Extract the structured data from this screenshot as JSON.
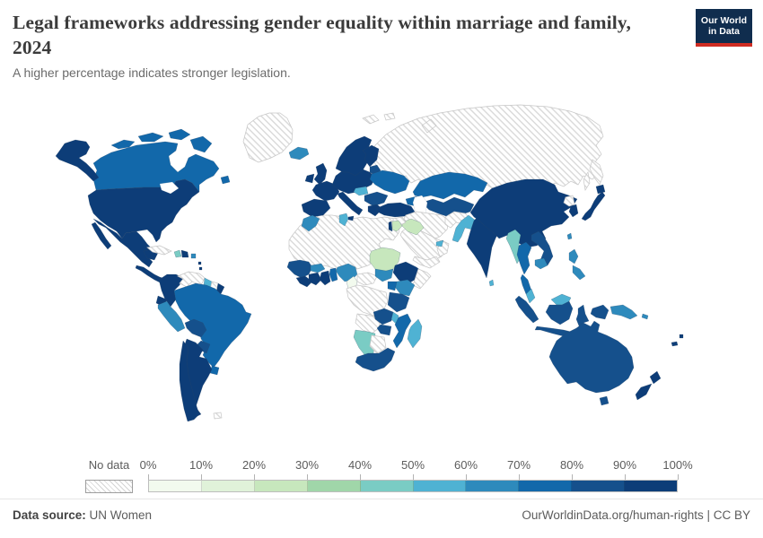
{
  "header": {
    "title": "Legal frameworks addressing gender equality within marriage and family, 2024",
    "subtitle": "A higher percentage indicates stronger legislation."
  },
  "logo": {
    "line1": "Our World",
    "line2": "in Data",
    "bg_color": "#102d4e",
    "accent_color": "#cf2c22"
  },
  "legend": {
    "no_data_label": "No data",
    "tick_labels": [
      "0%",
      "10%",
      "20%",
      "30%",
      "40%",
      "50%",
      "60%",
      "70%",
      "80%",
      "90%",
      "100%"
    ],
    "bin_colors": [
      "#f2faee",
      "#e0f2d9",
      "#c7e7bd",
      "#a0d6a9",
      "#7accc4",
      "#4fb2d3",
      "#2e8abc",
      "#1268aa",
      "#15508c",
      "#0d3d78"
    ],
    "no_data_hatch_line_color": "#d9d9d9"
  },
  "footer": {
    "source_label": "Data source:",
    "source_value": "UN Women",
    "right_text": "OurWorldinData.org/human-rights | CC BY"
  },
  "chart_data": {
    "type": "choropleth",
    "title": "Legal frameworks addressing gender equality within marriage and family, 2024",
    "unit": "%",
    "bin_labels": [
      "0-10%",
      "10-20%",
      "20-30%",
      "30-40%",
      "40-50%",
      "50-60%",
      "60-70%",
      "70-80%",
      "80-90%",
      "90-100%"
    ],
    "no_data_label": "No data",
    "legend_position": "bottom",
    "regions": {
      "sahara": -1,
      "russia": -1,
      "kamchatka": -1,
      "sakhalin": -1,
      "svalbard": -1,
      "svalbard2": -1,
      "novaya": -1,
      "greenland": -1,
      "cuba": -1,
      "venezuela": -1,
      "suriname": -1,
      "falkland": -1,
      "iran": -1,
      "afghanistan": -1,
      "saudi": -1,
      "yemen": -1,
      "oman": -1,
      "syria": -1,
      "nkorea": -1,
      "car": -1,
      "congodrc": -1,
      "angola": -1,
      "botswana": -1,
      "somalia": -1,
      "canada": 7,
      "arctic1": 7,
      "arctic2": 7,
      "arctic3": 7,
      "baffin": 7,
      "newfoundland": 7,
      "alaska": 9,
      "usa": 9,
      "mexico": 9,
      "baja": 9,
      "yucatan": 9,
      "centralamerica": 9,
      "haiti": 4,
      "dominican": 9,
      "puertorico": 6,
      "antille1": 9,
      "antille2": 9,
      "colombia": 9,
      "guyana": 5,
      "frguiana": 9,
      "ecuador": 9,
      "peru": 6,
      "brazil": 7,
      "bolivia": 8,
      "paraguay": 8,
      "uruguay": 7,
      "argentina": 9,
      "chile": 9,
      "iceland": 6,
      "uk": 9,
      "ireland": 9,
      "iberia": 9,
      "france": 9,
      "centraleurope": 9,
      "scandinavia": 9,
      "finland": 9,
      "baltics": 8,
      "belarusukraine": 7,
      "hungary": 5,
      "balkans": 8,
      "italy": 9,
      "sicily": 9,
      "greece": 9,
      "caucasus": 7,
      "turkey": 9,
      "kazakhstan": 7,
      "centralasia": 8,
      "pakistan": 5,
      "india": 9,
      "srilanka": 5,
      "china": 9,
      "skorea": 9,
      "japan": 9,
      "hokkaido": 9,
      "taiwan": 6,
      "myanmar": 4,
      "thailand": 7,
      "thaipen": 7,
      "laosvietnam": 8,
      "cambodia": 6,
      "malaysia": 5,
      "malaysiaborneo": 5,
      "sumatra": 8,
      "java": 8,
      "kalimantan": 8,
      "sulawesi": 8,
      "wpapua": 8,
      "png": 6,
      "philippines1": 6,
      "philippines2": 6,
      "solomon": 6,
      "australia": 8,
      "tasmania": 8,
      "nzn": 9,
      "nzs": 9,
      "fiji": 9,
      "newcaledonia": 9,
      "morocco": 6,
      "tunisia": 5,
      "senegal": 8,
      "sierraleone": 9,
      "burkina": 6,
      "ivorycoast": 9,
      "ghana": 9,
      "togobenin": 7,
      "nigeria": 6,
      "cameroon": 0,
      "sudan": 2,
      "southsudan": 6,
      "ethiopia": 9,
      "kenya": 6,
      "uganda": 7,
      "tanzania": 8,
      "zambia": 8,
      "malawi": 5,
      "mozambique": 7,
      "zimbabwe": 8,
      "namibia": 4,
      "southafrica": 8,
      "madagascar": 5,
      "uae": 5,
      "iraq": 2,
      "jordan": 2,
      "israel": 9
    }
  }
}
